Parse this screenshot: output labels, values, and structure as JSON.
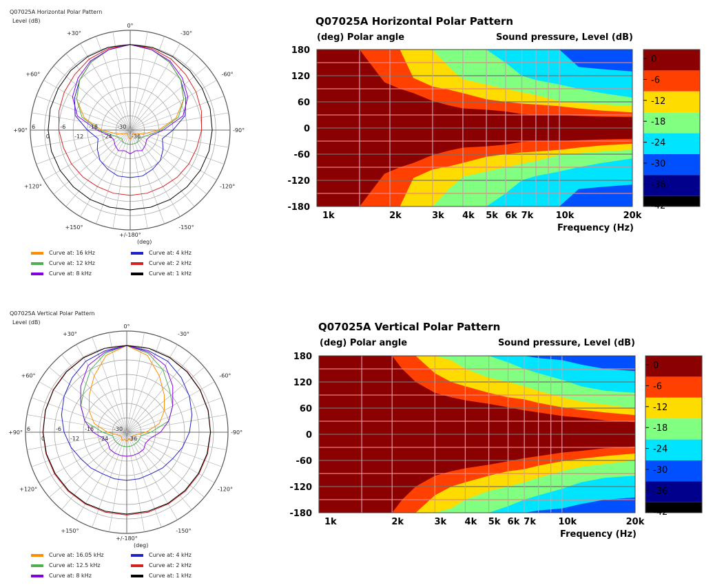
{
  "chart_data": [
    {
      "type": "polar",
      "title": "Q07025A Horizontal Polar Pattern",
      "rlabel": "Level  (dB)",
      "angle_unit": "(deg)",
      "angle_labels": [
        "0°",
        "-30°",
        "-60°",
        "-90°",
        "-120°",
        "-150°",
        "+/-180°",
        "+150°",
        "+120°",
        "+90°",
        "+60°",
        "+30°"
      ],
      "ring_labels": [
        "6",
        "0",
        "-6",
        "-12",
        "-18",
        "-24",
        "-30",
        "-36"
      ],
      "rlim": [
        -36,
        6
      ],
      "angles": [
        0,
        15,
        30,
        45,
        60,
        75,
        90,
        105,
        120,
        135,
        150,
        165,
        180
      ],
      "series": [
        {
          "name": "Curve at: 16 kHz",
          "color": "#ff8c00",
          "values": [
            0,
            -1,
            -3,
            -6,
            -10,
            -16,
            -24,
            -30,
            -33,
            -34,
            -34,
            -33,
            -32
          ]
        },
        {
          "name": "Curve at: 4 kHz",
          "color": "#2020c8",
          "values": [
            0,
            -1,
            -3,
            -6,
            -9,
            -12,
            -18,
            -22,
            -20,
            -18,
            -17,
            -16,
            -16
          ]
        },
        {
          "name": "Curve at: 12 kHz",
          "color": "#4caf50",
          "values": [
            0,
            -1,
            -3,
            -6,
            -10,
            -15,
            -23,
            -28,
            -30,
            -31,
            -30,
            -30,
            -30
          ]
        },
        {
          "name": "Curve at: 2 kHz",
          "color": "#d42020",
          "values": [
            0,
            -0.5,
            -1.5,
            -3,
            -4,
            -5,
            -6,
            -7,
            -7.5,
            -8,
            -8.5,
            -8.5,
            -8.5
          ]
        },
        {
          "name": "Curve at: 8 kHz",
          "color": "#8000e0",
          "values": [
            0,
            -1,
            -2.5,
            -5,
            -8,
            -13,
            -22,
            -27,
            -28,
            -27,
            -26,
            -27,
            -26
          ]
        },
        {
          "name": "Curve at: 1 kHz",
          "color": "#000000",
          "values": [
            0,
            0,
            -0.3,
            -0.6,
            -1,
            -1.2,
            -1.5,
            -1.7,
            -2,
            -2.2,
            -2.3,
            -2.4,
            -2.4
          ]
        }
      ]
    },
    {
      "type": "heatmap",
      "title": "Q07025A Horizontal Polar Pattern",
      "ylabel": "(deg)  Polar angle",
      "zlabel": "Sound pressure, Level  (dB)",
      "xlabel": "Frequency  (Hz)",
      "x_ticks": [
        "1k",
        "2k",
        "3k",
        "4k",
        "5k",
        "6k",
        "7k",
        "10k",
        "20k"
      ],
      "x_tick_values": [
        1000,
        2000,
        3000,
        4000,
        5000,
        6000,
        7000,
        10000,
        20000
      ],
      "y_ticks": [
        "180",
        "120",
        "60",
        "0",
        "-60",
        "-120",
        "-180"
      ],
      "xlim": [
        1000,
        20000
      ],
      "ylim": [
        -180,
        180
      ],
      "levels": [
        "0",
        "-6",
        "-12",
        "-18",
        "-24",
        "-30",
        "-36",
        "-42"
      ],
      "level_colors": [
        "#8b0000",
        "#ff4000",
        "#ffdc00",
        "#80ff80",
        "#00e4ff",
        "#0050ff",
        "#00008c",
        "#000000"
      ],
      "contour_freqs": [
        1000,
        1500,
        1700,
        1900,
        2200,
        2500,
        3000,
        3500,
        4000,
        5000,
        6000,
        7000,
        8000,
        10000,
        12000,
        15000,
        20000
      ],
      "contour_angles": [
        [
          180,
          180,
          140,
          105,
          90,
          80,
          62,
          52,
          45,
          42,
          38,
          32,
          30,
          30,
          28,
          26,
          25
        ],
        [
          180,
          180,
          180,
          180,
          180,
          115,
          95,
          88,
          80,
          66,
          60,
          56,
          54,
          50,
          45,
          40,
          36
        ],
        [
          180,
          180,
          180,
          180,
          180,
          180,
          180,
          140,
          112,
          100,
          90,
          82,
          76,
          62,
          58,
          54,
          50
        ],
        [
          180,
          180,
          180,
          180,
          180,
          180,
          180,
          180,
          180,
          180,
          150,
          120,
          110,
          100,
          90,
          80,
          70
        ],
        [
          180,
          180,
          180,
          180,
          180,
          180,
          180,
          180,
          180,
          180,
          180,
          180,
          180,
          180,
          140,
          135,
          130
        ]
      ]
    },
    {
      "type": "polar",
      "title": "Q07025A Vertical Polar Pattern",
      "rlabel": "Level  (dB)",
      "angle_unit": "(deg)",
      "angle_labels": [
        "0°",
        "-30°",
        "-60°",
        "-90°",
        "-120°",
        "-150°",
        "+/-180°",
        "+150°",
        "+120°",
        "+90°",
        "+60°",
        "+30°"
      ],
      "ring_labels": [
        "6",
        "0",
        "-6",
        "-12",
        "-18",
        "-24",
        "-30",
        "-36"
      ],
      "rlim": [
        -36,
        6
      ],
      "angles": [
        0,
        15,
        30,
        45,
        60,
        75,
        90,
        105,
        120,
        135,
        150,
        165,
        180
      ],
      "series": [
        {
          "name": "Curve at: 16.05 kHz",
          "color": "#ff8c00",
          "values": [
            0,
            -3,
            -9,
            -14,
            -18,
            -22,
            -28,
            -32,
            -33,
            -33,
            -32,
            -33,
            -32
          ]
        },
        {
          "name": "Curve at: 4 kHz",
          "color": "#2020c8",
          "values": [
            0,
            -1,
            -2,
            -4,
            -6,
            -8,
            -10,
            -12,
            -14,
            -15,
            -16,
            -16,
            -16
          ]
        },
        {
          "name": "Curve at: 12.5 kHz",
          "color": "#4caf50",
          "values": [
            0,
            -2,
            -6,
            -11,
            -14,
            -18,
            -26,
            -30,
            -30,
            -30,
            -30,
            -30,
            -30
          ]
        },
        {
          "name": "Curve at: 2 kHz",
          "color": "#d42020",
          "values": [
            0,
            0,
            -0.2,
            -0.5,
            -0.8,
            -1,
            -1.2,
            -1.3,
            -1.4,
            -1.5,
            -1.6,
            -1.6,
            -1.6
          ]
        },
        {
          "name": "Curve at: 8 kHz",
          "color": "#8000e0",
          "values": [
            0,
            -1.5,
            -4,
            -9,
            -14,
            -18,
            -22,
            -26,
            -27,
            -26,
            -26,
            -26,
            -26
          ]
        },
        {
          "name": "Curve at: 1 kHz",
          "color": "#000000",
          "values": [
            0,
            0,
            -0.3,
            -0.6,
            -0.9,
            -1.1,
            -1.3,
            -1.5,
            -1.7,
            -1.8,
            -1.9,
            -2,
            -2
          ]
        }
      ]
    },
    {
      "type": "heatmap",
      "title": "Q07025A Vertical Polar Pattern",
      "ylabel": "(deg)  Polar angle",
      "zlabel": "Sound pressure, Level  (dB)",
      "xlabel": "Frequency  (Hz)",
      "x_ticks": [
        "1k",
        "2k",
        "3k",
        "4k",
        "5k",
        "6k",
        "7k",
        "10k",
        "20k"
      ],
      "x_tick_values": [
        1000,
        2000,
        3000,
        4000,
        5000,
        6000,
        7000,
        10000,
        20000
      ],
      "y_ticks": [
        "180",
        "120",
        "60",
        "0",
        "-60",
        "-120",
        "-180"
      ],
      "xlim": [
        1000,
        20000
      ],
      "ylim": [
        -180,
        180
      ],
      "levels": [
        "0",
        "-6",
        "-12",
        "-18",
        "-24",
        "-30",
        "-36",
        "-42"
      ],
      "level_colors": [
        "#8b0000",
        "#ff4000",
        "#ffdc00",
        "#80ff80",
        "#00e4ff",
        "#0050ff",
        "#00008c",
        "#000000"
      ],
      "contour_freqs": [
        1000,
        1500,
        1900,
        2000,
        2200,
        2500,
        3000,
        3500,
        4000,
        5000,
        6000,
        7000,
        8000,
        10000,
        12000,
        15000,
        20000
      ],
      "contour_angles": [
        [
          180,
          180,
          180,
          180,
          150,
          120,
          95,
          85,
          78,
          70,
          62,
          55,
          50,
          42,
          38,
          32,
          28
        ],
        [
          180,
          180,
          180,
          180,
          180,
          180,
          140,
          120,
          110,
          95,
          85,
          80,
          72,
          62,
          56,
          50,
          44
        ],
        [
          180,
          180,
          180,
          180,
          180,
          180,
          180,
          170,
          150,
          130,
          120,
          110,
          100,
          85,
          75,
          68,
          60
        ],
        [
          180,
          180,
          180,
          180,
          180,
          180,
          180,
          180,
          180,
          180,
          165,
          150,
          140,
          125,
          110,
          100,
          95
        ],
        [
          180,
          180,
          180,
          180,
          180,
          180,
          180,
          180,
          180,
          180,
          180,
          180,
          175,
          170,
          160,
          150,
          145
        ]
      ]
    }
  ]
}
